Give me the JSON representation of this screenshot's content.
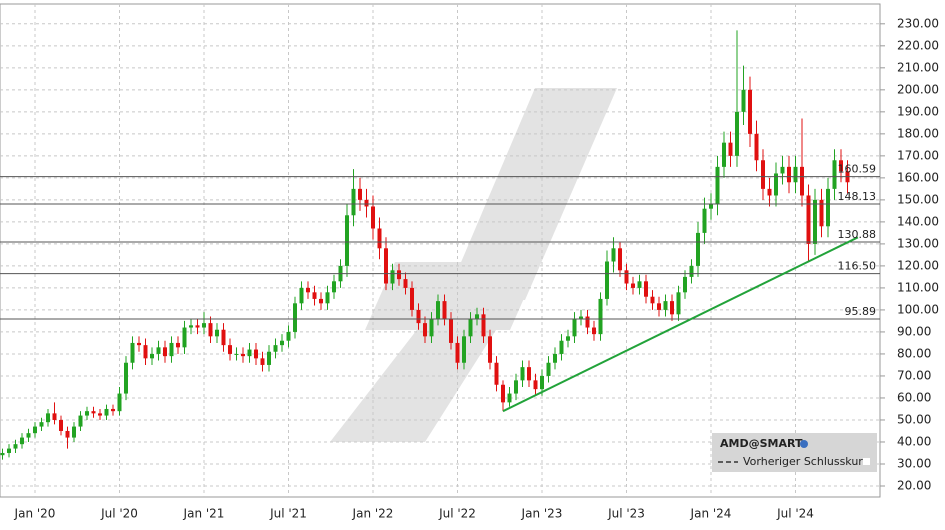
{
  "chart_data": {
    "type": "candlestick",
    "categories": [
      null,
      null,
      null,
      null,
      null,
      "Jan '20",
      null,
      null,
      null,
      null,
      null,
      null,
      null,
      null,
      null,
      null,
      null,
      null,
      "Jul '20",
      null,
      null,
      null,
      null,
      null,
      null,
      null,
      null,
      null,
      null,
      null,
      null,
      "Jan '21",
      null,
      null,
      null,
      null,
      null,
      null,
      null,
      null,
      null,
      null,
      null,
      null,
      "Jul '21",
      null,
      null,
      null,
      null,
      null,
      null,
      null,
      null,
      null,
      null,
      null,
      null,
      "Jan '22",
      null,
      null,
      null,
      null,
      null,
      null,
      null,
      null,
      null,
      null,
      null,
      null,
      "Jul '22",
      null,
      null,
      null,
      null,
      null,
      null,
      null,
      null,
      null,
      null,
      null,
      null,
      "Jan '23",
      null,
      null,
      null,
      null,
      null,
      null,
      null,
      null,
      null,
      null,
      null,
      null,
      "Jul '23",
      null,
      null,
      null,
      null,
      null,
      null,
      null,
      null,
      null,
      null,
      null,
      null,
      "Jan '24",
      null,
      null,
      null,
      null,
      null,
      null,
      null,
      null,
      null,
      null,
      null,
      null,
      "Jul '24",
      null,
      null,
      null,
      null,
      null,
      null,
      null,
      null
    ],
    "open": [
      34,
      35,
      37,
      39,
      42,
      44,
      47,
      49,
      53,
      50,
      45,
      42,
      47,
      52,
      54,
      53,
      52,
      55,
      54,
      62,
      76,
      85,
      84,
      78,
      80,
      83,
      79,
      85,
      83,
      92,
      93,
      92,
      94,
      88,
      91,
      84,
      80,
      80,
      79,
      82,
      78,
      75,
      81,
      84,
      86,
      90,
      103,
      110,
      108,
      105,
      103,
      108,
      113,
      120,
      143,
      155,
      150,
      147,
      137,
      128,
      112,
      118,
      114,
      110,
      100,
      94,
      88,
      96,
      104,
      96,
      85,
      76,
      88,
      96,
      98,
      88,
      76,
      66,
      58,
      62,
      68,
      74,
      68,
      64,
      70,
      76,
      80,
      86,
      88,
      96,
      97,
      92,
      89,
      105,
      122,
      128,
      118,
      112,
      110,
      113,
      106,
      103,
      100,
      104,
      98,
      108,
      115,
      120,
      135,
      146,
      148,
      165,
      176,
      170,
      190,
      200,
      180,
      168,
      155,
      152,
      162,
      165,
      158,
      165,
      152,
      130,
      150,
      138,
      155,
      168,
      163
    ],
    "high": [
      37,
      39,
      41,
      44,
      46,
      49,
      51,
      55,
      58,
      52,
      47,
      49,
      54,
      56,
      56,
      55,
      57,
      57,
      65,
      79,
      88,
      88,
      87,
      83,
      86,
      86,
      88,
      88,
      95,
      96,
      96,
      99,
      97,
      94,
      94,
      87,
      83,
      83,
      85,
      85,
      81,
      84,
      87,
      89,
      93,
      106,
      113,
      113,
      111,
      108,
      111,
      116,
      123,
      148,
      164,
      160,
      155,
      152,
      142,
      133,
      121,
      121,
      117,
      113,
      103,
      97,
      99,
      107,
      107,
      99,
      88,
      91,
      99,
      101,
      101,
      91,
      79,
      68,
      65,
      71,
      77,
      77,
      71,
      73,
      79,
      83,
      89,
      91,
      99,
      100,
      100,
      95,
      108,
      127,
      133,
      131,
      121,
      115,
      116,
      116,
      109,
      106,
      107,
      107,
      111,
      118,
      123,
      140,
      151,
      153,
      170,
      181,
      181,
      227,
      211,
      206,
      186,
      173,
      160,
      167,
      170,
      170,
      170,
      187,
      157,
      155,
      155,
      160,
      173,
      173,
      168
    ],
    "low": [
      32,
      33,
      35,
      37,
      40,
      42,
      45,
      47,
      48,
      43,
      37,
      40,
      45,
      50,
      51,
      50,
      50,
      52,
      52,
      59,
      73,
      81,
      75,
      75,
      77,
      76,
      76,
      80,
      80,
      89,
      89,
      89,
      85,
      85,
      81,
      77,
      77,
      76,
      76,
      75,
      72,
      72,
      78,
      81,
      83,
      87,
      100,
      105,
      102,
      100,
      100,
      105,
      110,
      115,
      138,
      145,
      142,
      132,
      123,
      109,
      109,
      111,
      107,
      97,
      91,
      85,
      85,
      93,
      93,
      82,
      73,
      73,
      85,
      93,
      85,
      73,
      63,
      54,
      56,
      59,
      65,
      65,
      61,
      61,
      67,
      73,
      77,
      83,
      85,
      93,
      89,
      86,
      86,
      102,
      117,
      115,
      109,
      107,
      107,
      103,
      100,
      97,
      97,
      95,
      95,
      105,
      112,
      115,
      130,
      141,
      143,
      160,
      165,
      165,
      184,
      174,
      163,
      150,
      147,
      147,
      157,
      153,
      153,
      147,
      122,
      125,
      133,
      133,
      150,
      158,
      153
    ],
    "close": [
      35,
      37,
      39,
      42,
      44,
      47,
      49,
      53,
      50,
      45,
      42,
      47,
      52,
      54,
      53,
      52,
      55,
      54,
      62,
      76,
      85,
      84,
      78,
      80,
      83,
      79,
      85,
      83,
      92,
      93,
      92,
      94,
      88,
      91,
      84,
      80,
      80,
      79,
      82,
      78,
      75,
      81,
      84,
      86,
      90,
      103,
      110,
      108,
      105,
      103,
      108,
      113,
      120,
      143,
      155,
      150,
      147,
      137,
      128,
      112,
      118,
      114,
      110,
      100,
      94,
      88,
      96,
      104,
      96,
      85,
      76,
      88,
      96,
      98,
      88,
      76,
      66,
      58,
      62,
      68,
      74,
      68,
      64,
      70,
      76,
      80,
      86,
      88,
      96,
      97,
      92,
      89,
      105,
      122,
      128,
      118,
      112,
      110,
      113,
      106,
      103,
      100,
      104,
      98,
      108,
      115,
      120,
      135,
      146,
      148,
      165,
      176,
      170,
      190,
      200,
      180,
      168,
      155,
      152,
      162,
      165,
      158,
      165,
      152,
      130,
      150,
      138,
      155,
      168,
      163,
      158
    ],
    "up_color": "#22a322",
    "down_color": "#e01010",
    "ylim": [
      15,
      239
    ],
    "yticks": [
      {
        "value": 20,
        "label": "20.00"
      },
      {
        "value": 30,
        "label": "30.00"
      },
      {
        "value": 40,
        "label": "40.00"
      },
      {
        "value": 50,
        "label": "50.00"
      },
      {
        "value": 60,
        "label": "60.00"
      },
      {
        "value": 70,
        "label": "70.00"
      },
      {
        "value": 80,
        "label": "80.00"
      },
      {
        "value": 90,
        "label": "90.00"
      },
      {
        "value": 100,
        "label": "100.00"
      },
      {
        "value": 110,
        "label": "110.00"
      },
      {
        "value": 120,
        "label": "120.00"
      },
      {
        "value": 130,
        "label": "130.00"
      },
      {
        "value": 140,
        "label": "140.00"
      },
      {
        "value": 150,
        "label": "150.00"
      },
      {
        "value": 160,
        "label": "160.00"
      },
      {
        "value": 170,
        "label": "170.00"
      },
      {
        "value": 180,
        "label": "180.00"
      },
      {
        "value": 190,
        "label": "190.00"
      },
      {
        "value": 200,
        "label": "200.00"
      },
      {
        "value": 210,
        "label": "210.00"
      },
      {
        "value": 220,
        "label": "220.00"
      },
      {
        "value": 230,
        "label": "230.00"
      }
    ],
    "grid": true,
    "levels": [
      160.59,
      148.13,
      130.88,
      {
        "value": 116.5,
        "label": "116.50"
      },
      95.89
    ],
    "level_color": "#555555",
    "trendline": {
      "x": [
        77,
        131.6
      ],
      "y": [
        54,
        133
      ],
      "color": "#22a33a"
    },
    "legend": {
      "symbol": "AMD@SMART",
      "line": "Vorheriger Schlusskurs"
    }
  }
}
